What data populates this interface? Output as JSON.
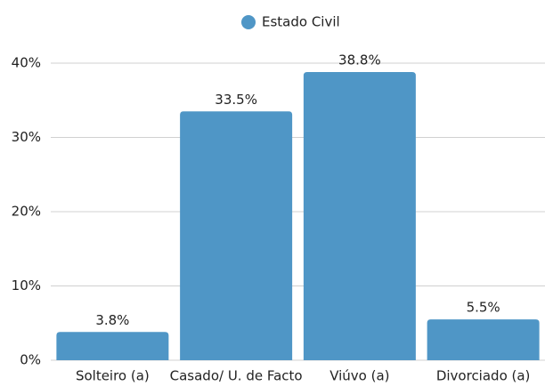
{
  "chart_data": {
    "type": "bar",
    "categories": [
      "Solteiro (a)",
      "Casado/ U. de Facto",
      "Viúvo (a)",
      "Divorciado (a)"
    ],
    "series": [
      {
        "name": "Estado Civil",
        "color": "#4f96c6",
        "values": [
          3.8,
          33.5,
          38.8,
          5.5
        ],
        "value_labels": [
          "3.8%",
          "33.5%",
          "38.8%",
          "5.5%"
        ]
      }
    ],
    "ylim": [
      0,
      40
    ],
    "yticks": [
      {
        "value": 0,
        "label": "0%"
      },
      {
        "value": 10,
        "label": "10%"
      },
      {
        "value": 20,
        "label": "20%"
      },
      {
        "value": 30,
        "label": "30%"
      },
      {
        "value": 40,
        "label": "40%"
      }
    ],
    "grid": true,
    "legend": "top"
  }
}
